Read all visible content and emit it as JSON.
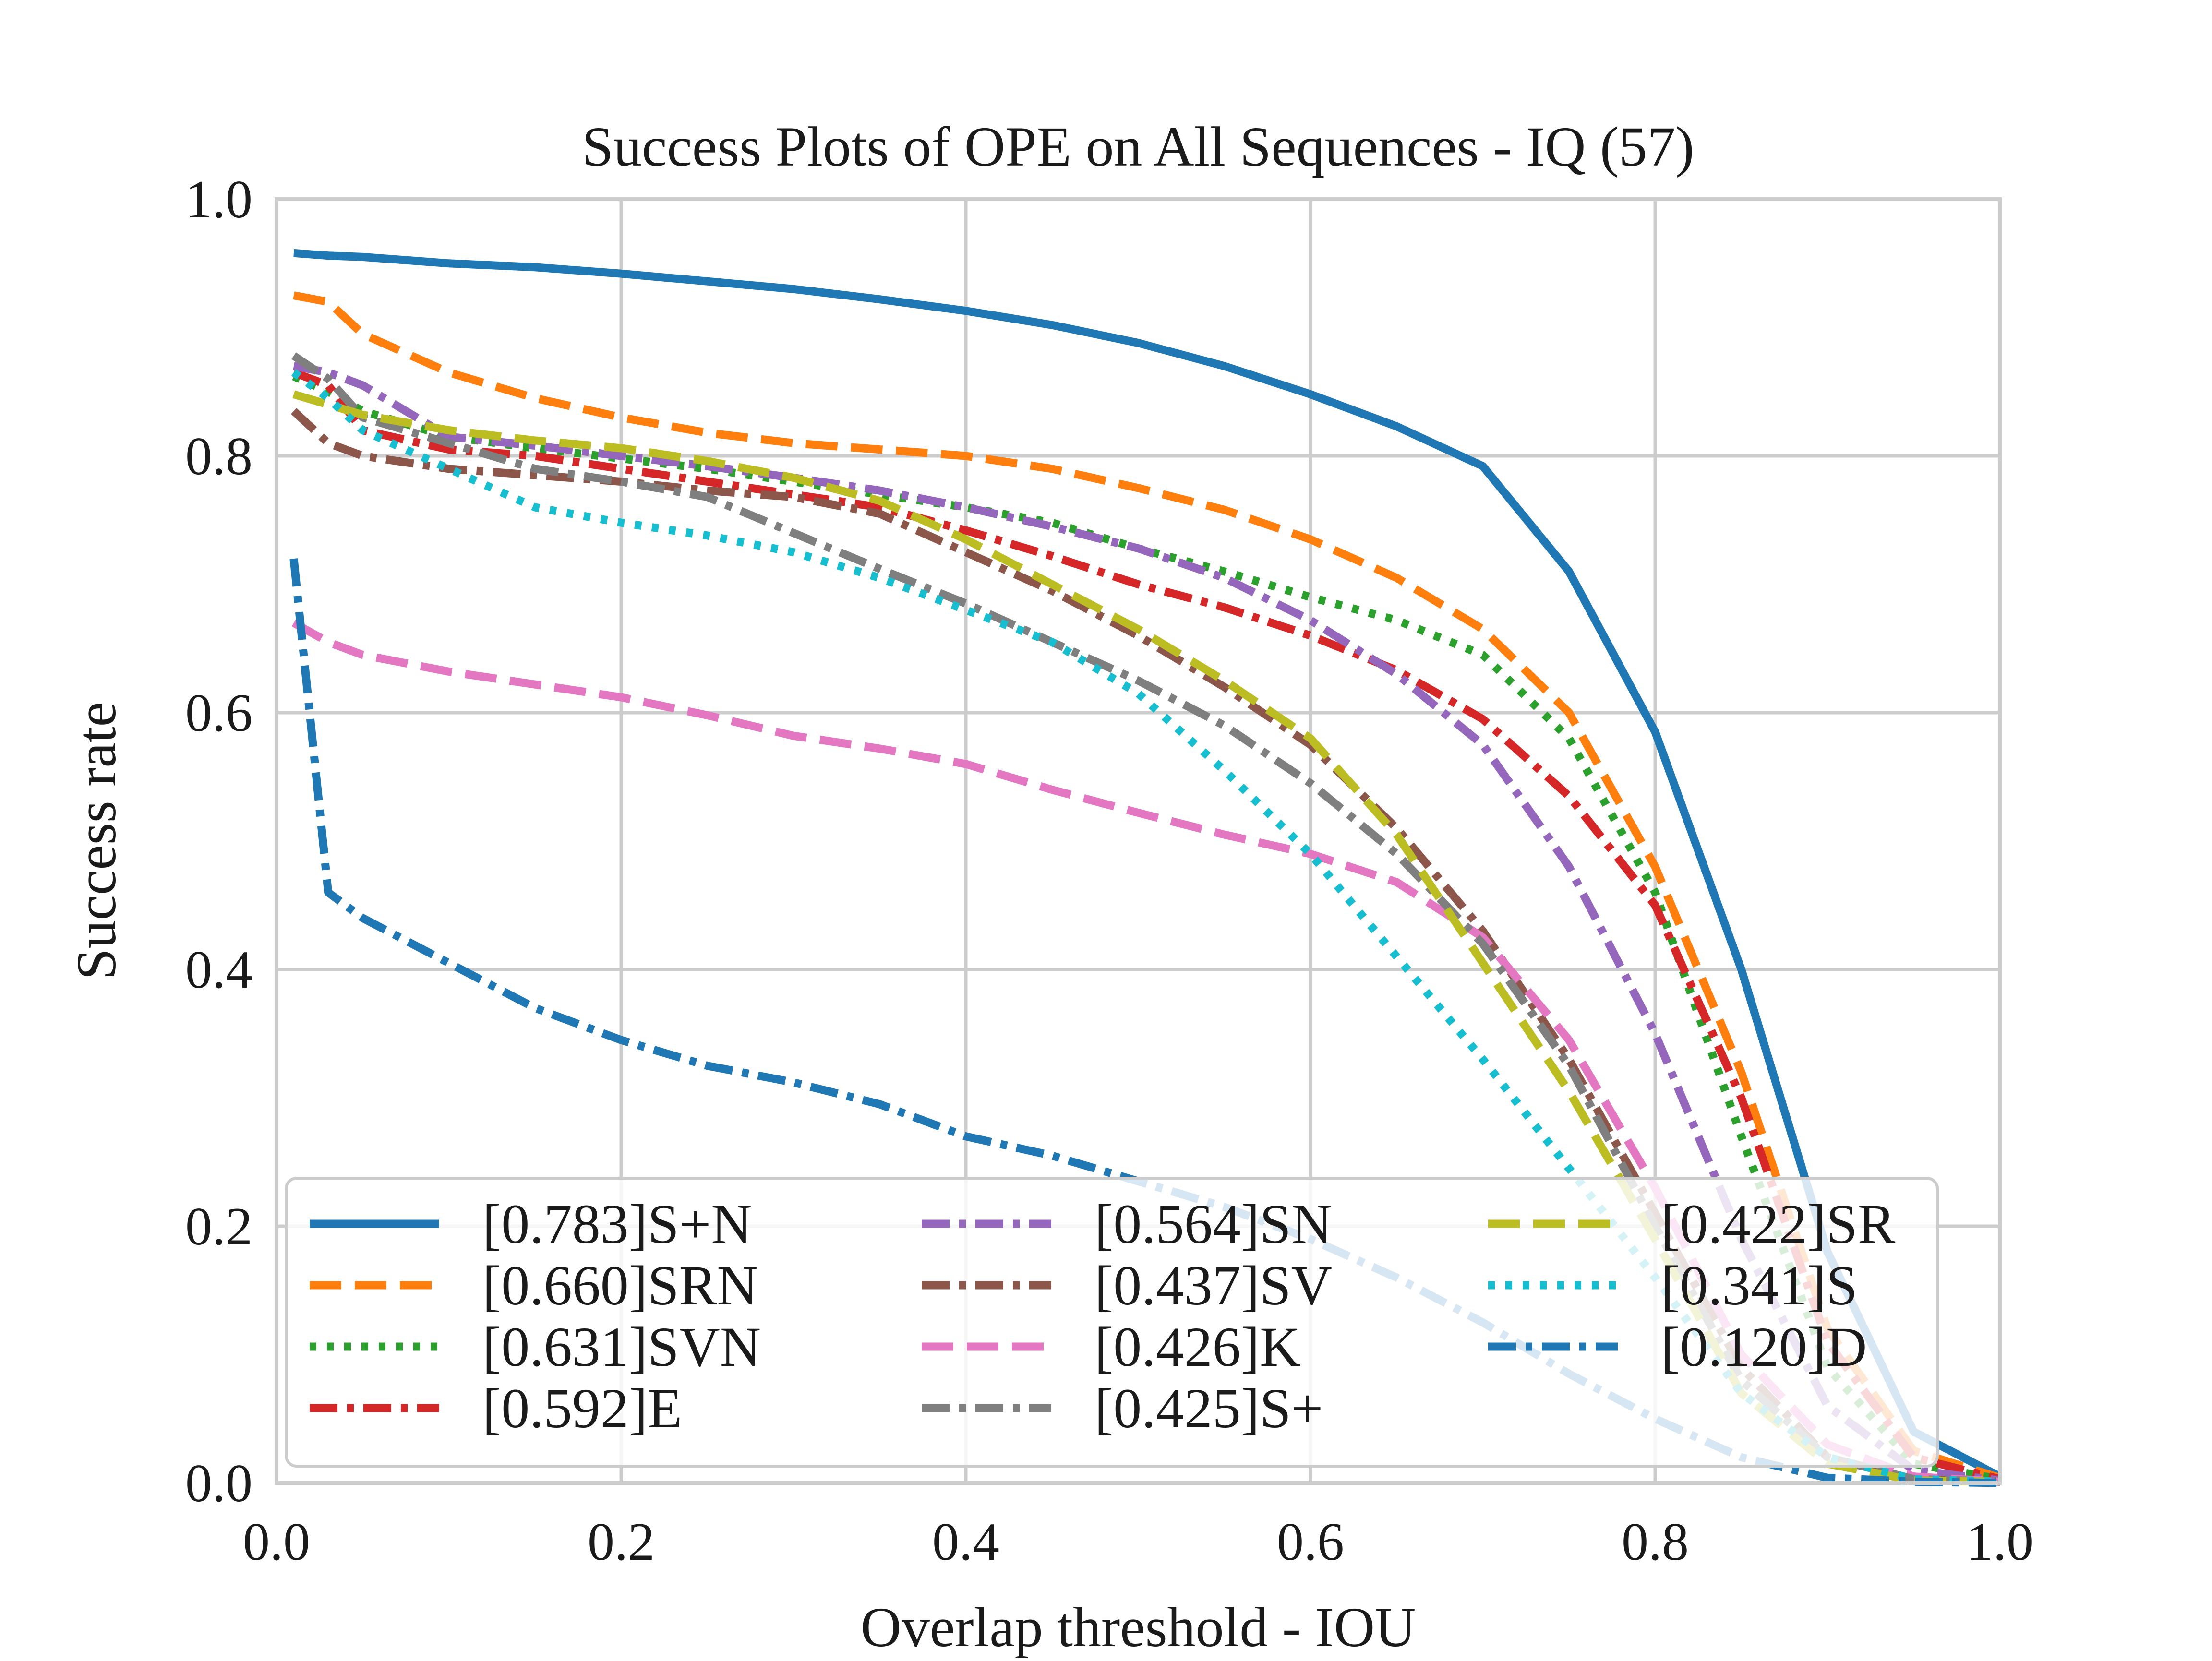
{
  "chart_data": {
    "type": "line",
    "title": "Success Plots of OPE on All Sequences - IQ (57)",
    "xlabel": "Overlap threshold - IOU",
    "ylabel": "Success rate",
    "xlim": [
      0.0,
      1.0
    ],
    "ylim": [
      0.0,
      1.0
    ],
    "xticks": [
      "0.0",
      "0.2",
      "0.4",
      "0.6",
      "0.8",
      "1.0"
    ],
    "yticks": [
      "0.0",
      "0.2",
      "0.4",
      "0.6",
      "0.8",
      "1.0"
    ],
    "grid": true,
    "legend_position": "lower-left",
    "x": [
      0.01,
      0.03,
      0.05,
      0.1,
      0.15,
      0.2,
      0.25,
      0.3,
      0.35,
      0.4,
      0.45,
      0.5,
      0.55,
      0.6,
      0.65,
      0.7,
      0.75,
      0.8,
      0.85,
      0.9,
      0.95,
      1.0
    ],
    "series": [
      {
        "name": "[0.783]S+N",
        "color": "#1f77b4",
        "dash": "solid",
        "values": [
          0.958,
          0.956,
          0.955,
          0.95,
          0.947,
          0.942,
          0.936,
          0.93,
          0.922,
          0.913,
          0.902,
          0.888,
          0.87,
          0.848,
          0.823,
          0.792,
          0.71,
          0.585,
          0.4,
          0.18,
          0.04,
          0.005
        ]
      },
      {
        "name": "[0.660]SRN",
        "color": "#ff7f0e",
        "dash": "dashed",
        "values": [
          0.925,
          0.92,
          0.895,
          0.865,
          0.845,
          0.83,
          0.818,
          0.81,
          0.805,
          0.8,
          0.79,
          0.775,
          0.758,
          0.735,
          0.705,
          0.665,
          0.6,
          0.48,
          0.32,
          0.12,
          0.025,
          0.004
        ]
      },
      {
        "name": "[0.631]SVN",
        "color": "#2ca02c",
        "dash": "dotted",
        "values": [
          0.862,
          0.85,
          0.835,
          0.815,
          0.806,
          0.798,
          0.79,
          0.78,
          0.77,
          0.76,
          0.748,
          0.728,
          0.71,
          0.69,
          0.672,
          0.645,
          0.58,
          0.46,
          0.27,
          0.09,
          0.015,
          0.003
        ]
      },
      {
        "name": "[0.592]E",
        "color": "#d62728",
        "dash": "dashdot",
        "values": [
          0.865,
          0.855,
          0.82,
          0.805,
          0.8,
          0.79,
          0.78,
          0.77,
          0.76,
          0.742,
          0.722,
          0.7,
          0.682,
          0.66,
          0.633,
          0.595,
          0.535,
          0.45,
          0.3,
          0.11,
          0.02,
          0.003
        ]
      },
      {
        "name": "[0.564]SN",
        "color": "#9467bd",
        "dash": "dashdot",
        "values": [
          0.87,
          0.865,
          0.855,
          0.815,
          0.808,
          0.8,
          0.792,
          0.783,
          0.773,
          0.76,
          0.745,
          0.728,
          0.705,
          0.672,
          0.63,
          0.575,
          0.48,
          0.35,
          0.19,
          0.06,
          0.01,
          0.002
        ]
      },
      {
        "name": "[0.437]SV",
        "color": "#8c564b",
        "dash": "dashdot",
        "values": [
          0.835,
          0.81,
          0.8,
          0.79,
          0.785,
          0.78,
          0.773,
          0.768,
          0.755,
          0.725,
          0.695,
          0.66,
          0.62,
          0.575,
          0.51,
          0.43,
          0.33,
          0.21,
          0.09,
          0.02,
          0.003,
          0.001
        ]
      },
      {
        "name": "[0.426]K",
        "color": "#e377c2",
        "dash": "dashed",
        "values": [
          0.67,
          0.655,
          0.645,
          0.632,
          0.622,
          0.612,
          0.598,
          0.582,
          0.572,
          0.56,
          0.54,
          0.522,
          0.505,
          0.49,
          0.468,
          0.425,
          0.345,
          0.23,
          0.1,
          0.03,
          0.005,
          0.001
        ]
      },
      {
        "name": "[0.425]S+",
        "color": "#7f7f7f",
        "dash": "dashdot",
        "values": [
          0.878,
          0.86,
          0.83,
          0.81,
          0.79,
          0.78,
          0.768,
          0.74,
          0.712,
          0.685,
          0.655,
          0.625,
          0.59,
          0.545,
          0.49,
          0.42,
          0.325,
          0.2,
          0.08,
          0.02,
          0.003,
          0.001
        ]
      },
      {
        "name": "[0.422]SR",
        "color": "#bcbd22",
        "dash": "dashed",
        "values": [
          0.848,
          0.84,
          0.832,
          0.82,
          0.812,
          0.806,
          0.796,
          0.783,
          0.765,
          0.735,
          0.7,
          0.665,
          0.625,
          0.58,
          0.505,
          0.405,
          0.305,
          0.19,
          0.07,
          0.015,
          0.002,
          0.001
        ]
      },
      {
        "name": "[0.341]S",
        "color": "#17becf",
        "dash": "dotted",
        "values": [
          0.865,
          0.845,
          0.82,
          0.79,
          0.76,
          0.748,
          0.738,
          0.725,
          0.705,
          0.68,
          0.655,
          0.615,
          0.555,
          0.49,
          0.41,
          0.33,
          0.245,
          0.16,
          0.07,
          0.02,
          0.003,
          0.001
        ]
      },
      {
        "name": "[0.120]D",
        "color": "#1f77b4",
        "dash": "dashdot",
        "values": [
          0.72,
          0.46,
          0.44,
          0.405,
          0.37,
          0.345,
          0.325,
          0.312,
          0.295,
          0.27,
          0.255,
          0.235,
          0.215,
          0.19,
          0.16,
          0.125,
          0.085,
          0.05,
          0.02,
          0.004,
          0.001,
          0.0
        ]
      }
    ]
  }
}
